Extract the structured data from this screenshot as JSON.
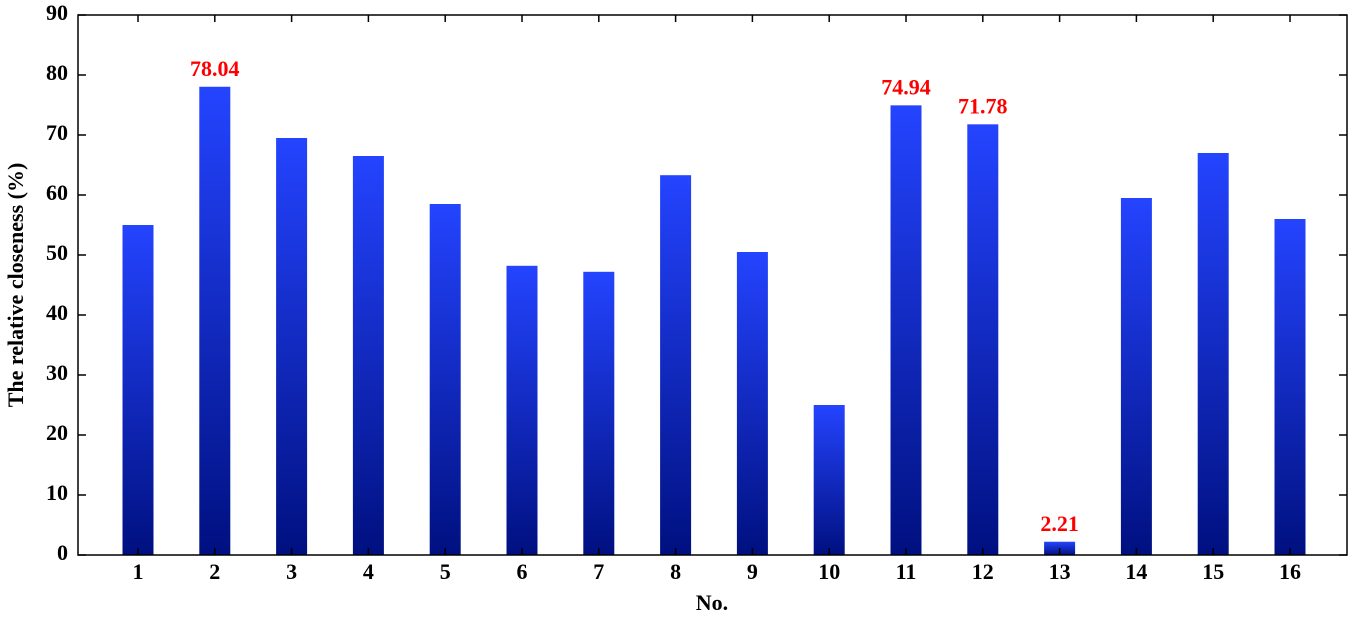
{
  "chart_data": {
    "type": "bar",
    "x_label": "No.",
    "y_label": "The relative closeness (%)",
    "categories": [
      "1",
      "2",
      "3",
      "4",
      "5",
      "6",
      "7",
      "8",
      "9",
      "10",
      "11",
      "12",
      "13",
      "14",
      "15",
      "16"
    ],
    "values": [
      55.0,
      78.04,
      69.5,
      66.5,
      58.5,
      48.2,
      47.2,
      63.3,
      50.5,
      25.0,
      74.94,
      71.78,
      2.21,
      59.5,
      67.0,
      56.0
    ],
    "value_labels": [
      null,
      "78.04",
      null,
      null,
      null,
      null,
      null,
      null,
      null,
      null,
      "74.94",
      "71.78",
      "2.21",
      null,
      null,
      null
    ],
    "color_top": "#2444ff",
    "color_bottom": "#001080",
    "label_color": "#ff0000",
    "ylim": [
      0,
      90
    ],
    "yticks": [
      0,
      10,
      20,
      30,
      40,
      50,
      60,
      70,
      80,
      90
    ]
  }
}
